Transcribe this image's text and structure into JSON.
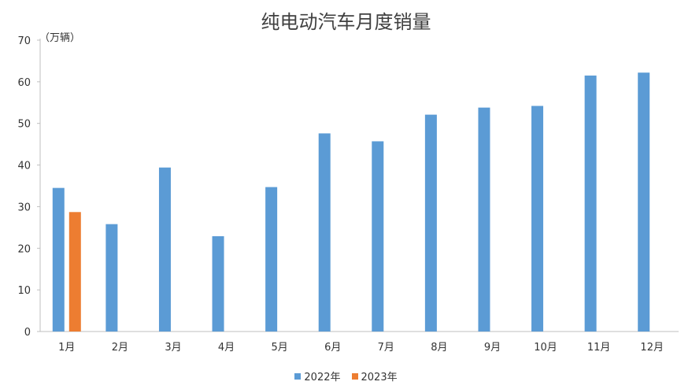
{
  "chart_data": {
    "type": "bar",
    "title": "纯电动汽车月度销量",
    "ylabel": "（万辆）",
    "xlabel": "",
    "ylim": [
      0,
      70
    ],
    "yticks": [
      0,
      10,
      20,
      30,
      40,
      50,
      60,
      70
    ],
    "grid": false,
    "legend_position": "bottom",
    "categories": [
      "1月",
      "2月",
      "3月",
      "4月",
      "5月",
      "6月",
      "7月",
      "8月",
      "9月",
      "10月",
      "11月",
      "12月"
    ],
    "series": [
      {
        "name": "2022年",
        "color": "#5b9bd5",
        "values": [
          34.5,
          25.8,
          39.4,
          22.9,
          34.7,
          47.6,
          45.7,
          52.1,
          53.8,
          54.2,
          61.5,
          62.2
        ]
      },
      {
        "name": "2023年",
        "color": "#ed7d31",
        "values": [
          28.7,
          null,
          null,
          null,
          null,
          null,
          null,
          null,
          null,
          null,
          null,
          null
        ]
      }
    ]
  }
}
